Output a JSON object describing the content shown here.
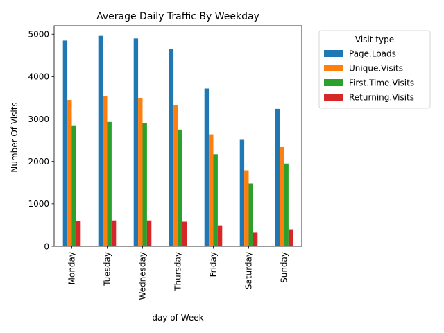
{
  "chart_data": {
    "type": "bar",
    "title": "Average Daily Traffic By Weekday",
    "xlabel": "day of Week",
    "ylabel": "Number Of Visits",
    "ylim": [
      0,
      5200
    ],
    "yticks": [
      0,
      1000,
      2000,
      3000,
      4000,
      5000
    ],
    "categories": [
      "Monday",
      "Tuesday",
      "Wednesday",
      "Thursday",
      "Friday",
      "Saturday",
      "Sunday"
    ],
    "legend_title": "Visit type",
    "legend_position": "outside-right-top",
    "grid": false,
    "series": [
      {
        "name": "Page.Loads",
        "color": "#1f77b4",
        "values": [
          4850,
          4960,
          4900,
          4650,
          3720,
          2510,
          3240
        ]
      },
      {
        "name": "Unique.Visits",
        "color": "#ff7f0e",
        "values": [
          3450,
          3540,
          3500,
          3320,
          2640,
          1790,
          2340
        ]
      },
      {
        "name": "First.Time.Visits",
        "color": "#2ca02c",
        "values": [
          2850,
          2930,
          2900,
          2750,
          2170,
          1480,
          1950
        ]
      },
      {
        "name": "Returning.Visits",
        "color": "#d62728",
        "values": [
          600,
          610,
          610,
          580,
          480,
          320,
          400
        ]
      }
    ]
  }
}
